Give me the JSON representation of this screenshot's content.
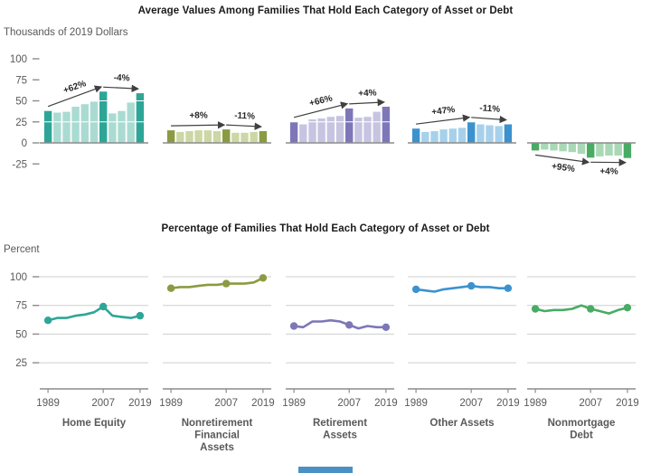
{
  "artifact": {
    "color": "#4a90c2"
  },
  "chart_data": [
    {
      "type": "bar",
      "title": "Average Values Among Families That Hold Each Category of Asset or Debt",
      "unit_label": "Thousands of 2019 Dollars",
      "ylim": [
        -25,
        100
      ],
      "yticks": [
        100,
        75,
        50,
        25,
        0,
        -25
      ],
      "years": [
        1989,
        1992,
        1995,
        1998,
        2001,
        2004,
        2007,
        2010,
        2013,
        2016,
        2019
      ],
      "highlight_years": [
        1989,
        2007,
        2019
      ],
      "grid": "white-lines-over-bars",
      "groups": [
        {
          "name": "Home Equity",
          "color_dark": "#2ea697",
          "color_light": "#aadbd2",
          "values": [
            38,
            36,
            37,
            43,
            46,
            49,
            61,
            35,
            38,
            48,
            59
          ],
          "annotations": [
            {
              "from_year": 1989,
              "to_year": 2007,
              "label": "+62%"
            },
            {
              "from_year": 2007,
              "to_year": 2019,
              "label": "-4%"
            }
          ]
        },
        {
          "name": "Nonretirement Financial Assets",
          "color_dark": "#8b9b41",
          "color_light": "#cdd7a5",
          "values": [
            15,
            13,
            14,
            15,
            15,
            14,
            16,
            12,
            12,
            13,
            14
          ],
          "annotations": [
            {
              "from_year": 1989,
              "to_year": 2007,
              "label": "+8%"
            },
            {
              "from_year": 2007,
              "to_year": 2019,
              "label": "-11%"
            }
          ]
        },
        {
          "name": "Retirement Assets",
          "color_dark": "#7d77b9",
          "color_light": "#c7c4e1",
          "values": [
            25,
            22,
            28,
            29,
            31,
            32,
            41,
            30,
            31,
            37,
            43
          ],
          "annotations": [
            {
              "from_year": 1989,
              "to_year": 2007,
              "label": "+66%"
            },
            {
              "from_year": 2007,
              "to_year": 2019,
              "label": "+4%"
            }
          ]
        },
        {
          "name": "Other Assets",
          "color_dark": "#3c92cf",
          "color_light": "#a7d1eb",
          "values": [
            17,
            13,
            14,
            16,
            17,
            18,
            25,
            22,
            21,
            20,
            22
          ],
          "annotations": [
            {
              "from_year": 1989,
              "to_year": 2007,
              "label": "+47%"
            },
            {
              "from_year": 2007,
              "to_year": 2019,
              "label": "-11%"
            }
          ]
        },
        {
          "name": "Nonmortgage Debt",
          "color_dark": "#49ab64",
          "color_light": "#a9d8b5",
          "values": [
            -9,
            -8,
            -9,
            -10,
            -11,
            -13,
            -17.5,
            -16,
            -15,
            -15,
            -18
          ],
          "annotations": [
            {
              "from_year": 1989,
              "to_year": 2007,
              "label": "+95%"
            },
            {
              "from_year": 2007,
              "to_year": 2019,
              "label": "+4%"
            }
          ]
        }
      ]
    },
    {
      "type": "line",
      "title": "Percentage of Families That Hold Each Category of Asset or Debt",
      "unit_label": "Percent",
      "ylim": [
        0,
        100
      ],
      "yticks": [
        100,
        75,
        50,
        25
      ],
      "x": [
        1989,
        1992,
        1995,
        1998,
        2001,
        2004,
        2007,
        2010,
        2013,
        2016,
        2019
      ],
      "xticks": [
        1989,
        2007,
        2019
      ],
      "marker_years": [
        1989,
        2007,
        2019
      ],
      "grid": "horizontal-gray",
      "legend": "none",
      "series": [
        {
          "name": "Home Equity",
          "label_lines": [
            "Home Equity"
          ],
          "color": "#2ea697",
          "values": [
            62,
            64,
            64,
            66,
            67,
            69,
            74,
            66,
            65,
            64,
            66
          ]
        },
        {
          "name": "Nonretirement Financial Assets",
          "label_lines": [
            "Nonretirement",
            "Financial",
            "Assets"
          ],
          "color": "#8b9b41",
          "values": [
            90,
            91,
            91,
            92,
            93,
            93,
            94,
            94,
            94,
            95,
            99
          ]
        },
        {
          "name": "Retirement Assets",
          "label_lines": [
            "Retirement",
            "Assets"
          ],
          "color": "#7d77b9",
          "values": [
            57,
            56,
            61,
            61,
            62,
            61,
            58,
            55,
            57,
            56,
            56
          ]
        },
        {
          "name": "Other Assets",
          "label_lines": [
            "Other Assets"
          ],
          "color": "#3c92cf",
          "values": [
            89,
            88,
            87,
            89,
            90,
            91,
            92,
            91,
            91,
            90,
            90
          ]
        },
        {
          "name": "Nonmortgage Debt",
          "label_lines": [
            "Nonmortgage",
            "Debt"
          ],
          "color": "#49ab64",
          "values": [
            72,
            70,
            71,
            71,
            72,
            75,
            72,
            70,
            68,
            71,
            73
          ]
        }
      ]
    }
  ]
}
